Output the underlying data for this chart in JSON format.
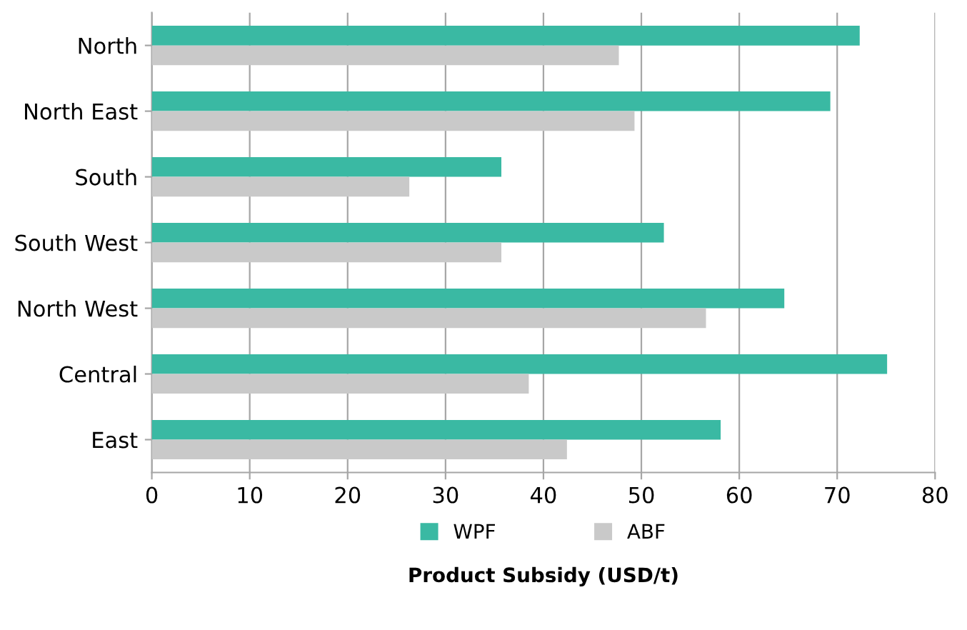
{
  "chart_data": {
    "type": "bar",
    "orientation": "horizontal",
    "xlabel": "Product Subsidy (USD/t)",
    "categories": [
      "North",
      "North East",
      "South",
      "South West",
      "North West",
      "Central",
      "East"
    ],
    "series": [
      {
        "name": "WPF",
        "color": "#3ab9a3",
        "values": [
          72.3,
          69.3,
          35.7,
          52.3,
          64.6,
          75.1,
          58.1
        ]
      },
      {
        "name": "ABF",
        "color": "#c9c9c9",
        "values": [
          47.7,
          49.3,
          26.3,
          35.7,
          56.6,
          38.5,
          42.4
        ]
      }
    ],
    "xlim": [
      0,
      80
    ],
    "xticks": [
      0,
      10,
      20,
      30,
      40,
      50,
      60,
      70,
      80
    ],
    "grid": "x",
    "legend": "bottom"
  }
}
